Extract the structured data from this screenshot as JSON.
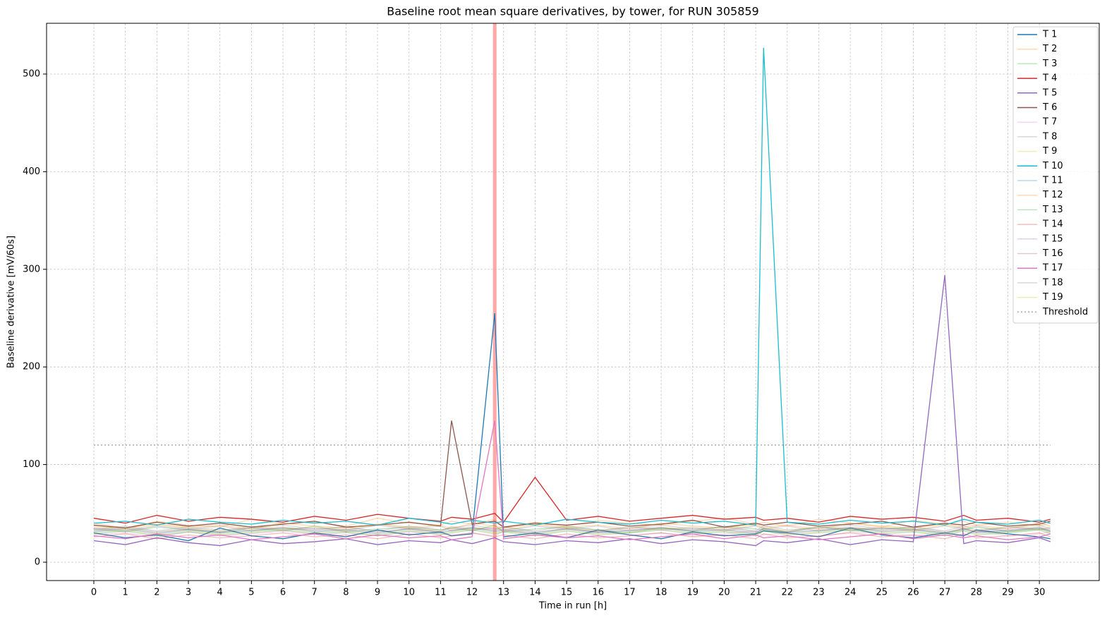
{
  "chart_data": {
    "type": "line",
    "title": "Baseline root mean square derivatives, by tower, for RUN 305859",
    "x_label": "Time in run [h]",
    "y_label": "Baseline derivative [mV/60s]",
    "x": [
      0,
      1,
      2,
      3,
      4,
      5,
      6,
      7,
      8,
      9,
      10,
      11,
      11.35,
      12,
      12.72,
      13,
      14,
      15,
      16,
      17,
      18,
      19,
      20,
      21,
      21.25,
      22,
      23,
      24,
      25,
      26,
      27,
      27.6,
      28,
      29,
      30,
      30.35
    ],
    "series": [
      {
        "name": "T 1",
        "color": "#1f77b4",
        "opacity": 1,
        "values": [
          30,
          25,
          28,
          22,
          35,
          27,
          24,
          30,
          26,
          33,
          28,
          31,
          27,
          29,
          255,
          26,
          30,
          25,
          33,
          28,
          24,
          31,
          27,
          29,
          32,
          30,
          26,
          35,
          28,
          25,
          30,
          27,
          33,
          29,
          26,
          24
        ]
      },
      {
        "name": "T 2",
        "color": "#ff7f0e",
        "opacity": 0.3,
        "values": [
          40,
          35,
          42,
          38,
          36,
          44,
          39,
          41,
          37,
          45,
          40,
          38,
          42,
          39,
          44,
          36,
          41,
          37,
          43,
          40,
          38,
          42,
          45,
          39,
          41,
          37,
          44,
          40,
          36,
          43,
          39,
          42,
          38,
          41,
          37,
          40
        ]
      },
      {
        "name": "T 3",
        "color": "#2ca02c",
        "opacity": 0.3,
        "values": [
          34,
          31,
          36,
          33,
          30,
          35,
          32,
          37,
          31,
          34,
          36,
          33,
          35,
          32,
          38,
          31,
          34,
          36,
          33,
          30,
          35,
          32,
          37,
          34,
          33,
          31,
          36,
          32,
          35,
          34,
          30,
          33,
          36,
          31,
          34,
          32
        ]
      },
      {
        "name": "T 4",
        "color": "#d62728",
        "opacity": 1,
        "values": [
          45,
          40,
          48,
          42,
          46,
          44,
          41,
          47,
          43,
          49,
          45,
          42,
          46,
          44,
          50,
          41,
          87,
          43,
          47,
          42,
          45,
          48,
          44,
          46,
          43,
          45,
          41,
          47,
          44,
          46,
          42,
          48,
          43,
          45,
          41,
          44
        ]
      },
      {
        "name": "T 5",
        "color": "#9467bd",
        "opacity": 1,
        "values": [
          22,
          18,
          25,
          20,
          17,
          23,
          19,
          21,
          24,
          18,
          22,
          20,
          23,
          19,
          25,
          21,
          18,
          22,
          20,
          24,
          19,
          23,
          21,
          17,
          22,
          20,
          24,
          18,
          23,
          21,
          294,
          19,
          22,
          20,
          25,
          21
        ]
      },
      {
        "name": "T 6",
        "color": "#8c564b",
        "opacity": 1,
        "values": [
          38,
          35,
          41,
          37,
          40,
          36,
          39,
          42,
          36,
          38,
          41,
          37,
          145,
          39,
          42,
          36,
          40,
          38,
          41,
          37,
          39,
          43,
          36,
          40,
          38,
          41,
          37,
          39,
          42,
          36,
          40,
          38,
          41,
          37,
          39,
          42
        ]
      },
      {
        "name": "T 7",
        "color": "#e377c2",
        "opacity": 0.3,
        "values": [
          28,
          30,
          26,
          31,
          27,
          29,
          32,
          28,
          30,
          27,
          31,
          29,
          28,
          30,
          27,
          32,
          29,
          26,
          31,
          28,
          30,
          27,
          29,
          32,
          28,
          30,
          26,
          31,
          29,
          27,
          30,
          28,
          32,
          27,
          29,
          31
        ]
      },
      {
        "name": "T 8",
        "color": "#7f7f7f",
        "opacity": 0.3,
        "values": [
          33,
          36,
          31,
          34,
          37,
          32,
          35,
          33,
          36,
          31,
          34,
          37,
          32,
          35,
          33,
          36,
          31,
          34,
          37,
          32,
          35,
          33,
          36,
          31,
          34,
          37,
          32,
          35,
          33,
          36,
          31,
          34,
          37,
          32,
          35,
          33
        ]
      },
      {
        "name": "T 9",
        "color": "#bcbd22",
        "opacity": 0.3,
        "values": [
          36,
          33,
          38,
          35,
          32,
          37,
          34,
          36,
          33,
          39,
          35,
          32,
          37,
          34,
          36,
          33,
          38,
          35,
          32,
          37,
          34,
          36,
          33,
          38,
          35,
          32,
          37,
          34,
          36,
          33,
          38,
          35,
          32,
          37,
          34,
          36
        ]
      },
      {
        "name": "T 10",
        "color": "#17becf",
        "opacity": 1,
        "values": [
          40,
          42,
          38,
          44,
          41,
          39,
          43,
          40,
          42,
          38,
          45,
          41,
          39,
          43,
          40,
          42,
          38,
          44,
          41,
          39,
          43,
          40,
          42,
          38,
          527,
          41,
          39,
          43,
          40,
          42,
          38,
          44,
          41,
          39,
          43,
          40
        ]
      },
      {
        "name": "T 11",
        "color": "#1f77b4",
        "opacity": 0.3,
        "values": [
          31,
          34,
          29,
          33,
          30,
          32,
          35,
          31,
          33,
          29,
          34,
          30,
          32,
          35,
          31,
          33,
          29,
          34,
          30,
          32,
          35,
          31,
          33,
          29,
          34,
          30,
          32,
          35,
          31,
          33,
          29,
          34,
          30,
          32,
          35,
          31
        ]
      },
      {
        "name": "T 12",
        "color": "#ff7f0e",
        "opacity": 0.3,
        "values": [
          37,
          35,
          39,
          36,
          38,
          34,
          40,
          37,
          35,
          39,
          36,
          38,
          34,
          40,
          37,
          35,
          39,
          36,
          38,
          34,
          40,
          37,
          35,
          39,
          36,
          38,
          34,
          40,
          37,
          35,
          39,
          36,
          38,
          34,
          40,
          37
        ]
      },
      {
        "name": "T 13",
        "color": "#2ca02c",
        "opacity": 0.3,
        "values": [
          29,
          32,
          27,
          31,
          28,
          30,
          33,
          29,
          31,
          27,
          32,
          28,
          30,
          33,
          29,
          31,
          27,
          32,
          28,
          30,
          33,
          29,
          31,
          27,
          32,
          28,
          30,
          33,
          29,
          31,
          27,
          32,
          28,
          30,
          33,
          29
        ]
      },
      {
        "name": "T 14",
        "color": "#d62728",
        "opacity": 0.3,
        "values": [
          26,
          29,
          24,
          28,
          25,
          27,
          30,
          26,
          28,
          24,
          29,
          25,
          27,
          30,
          26,
          28,
          24,
          29,
          25,
          27,
          30,
          26,
          28,
          24,
          29,
          25,
          27,
          30,
          26,
          28,
          24,
          29,
          25,
          27,
          30,
          26
        ]
      },
      {
        "name": "T 15",
        "color": "#9467bd",
        "opacity": 0.3,
        "values": [
          35,
          32,
          37,
          34,
          31,
          36,
          33,
          35,
          32,
          38,
          34,
          31,
          36,
          33,
          35,
          32,
          37,
          34,
          31,
          36,
          33,
          35,
          32,
          37,
          34,
          31,
          36,
          33,
          35,
          32,
          37,
          34,
          31,
          36,
          33,
          35
        ]
      },
      {
        "name": "T 16",
        "color": "#8c564b",
        "opacity": 0.3,
        "values": [
          32,
          35,
          30,
          34,
          31,
          33,
          36,
          32,
          34,
          30,
          35,
          31,
          33,
          36,
          32,
          34,
          30,
          35,
          31,
          33,
          36,
          32,
          34,
          30,
          35,
          31,
          33,
          36,
          32,
          34,
          30,
          35,
          31,
          33,
          36,
          32
        ]
      },
      {
        "name": "T 17",
        "color": "#e377c2",
        "opacity": 1,
        "values": [
          27,
          24,
          29,
          25,
          28,
          23,
          26,
          29,
          24,
          28,
          25,
          27,
          23,
          26,
          145,
          24,
          28,
          25,
          27,
          23,
          26,
          29,
          24,
          28,
          25,
          27,
          23,
          26,
          29,
          24,
          28,
          25,
          27,
          23,
          26,
          29
        ]
      },
      {
        "name": "T 18",
        "color": "#7f7f7f",
        "opacity": 0.3,
        "values": [
          34,
          37,
          32,
          36,
          33,
          35,
          38,
          34,
          36,
          32,
          37,
          33,
          35,
          38,
          34,
          36,
          32,
          37,
          33,
          35,
          38,
          34,
          36,
          32,
          37,
          33,
          35,
          38,
          34,
          36,
          32,
          37,
          33,
          35,
          38,
          34
        ]
      },
      {
        "name": "T 19",
        "color": "#bcbd22",
        "opacity": 0.3,
        "values": [
          30,
          33,
          28,
          32,
          29,
          31,
          34,
          30,
          32,
          28,
          33,
          29,
          31,
          34,
          30,
          32,
          28,
          33,
          29,
          31,
          34,
          30,
          32,
          28,
          33,
          29,
          31,
          34,
          30,
          32,
          28,
          33,
          29,
          31,
          34,
          30
        ]
      }
    ],
    "threshold": {
      "name": "Threshold",
      "value": 120,
      "color": "#aaaaaa"
    },
    "highlight_x": 12.72,
    "highlight_color": "#ff9999",
    "xlim": [
      -1.5,
      31.9
    ],
    "ylim": [
      -18.8,
      552
    ],
    "xticks": [
      0,
      1,
      2,
      3,
      4,
      5,
      6,
      7,
      8,
      9,
      10,
      11,
      12,
      13,
      14,
      15,
      16,
      17,
      18,
      19,
      20,
      21,
      22,
      23,
      24,
      25,
      26,
      27,
      28,
      29,
      30
    ],
    "yticks": [
      0,
      100,
      200,
      300,
      400,
      500
    ],
    "grid": true,
    "legend": "upper right"
  }
}
